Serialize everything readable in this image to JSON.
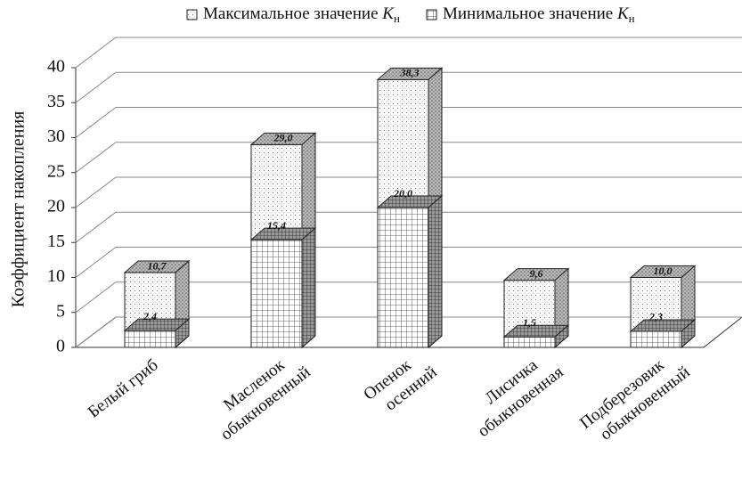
{
  "chart_data": {
    "type": "bar3d-overlap",
    "y_label": "Коэффициент накопления",
    "categories": [
      "Белый гриб",
      "Масленок\nобыкновенный",
      "Опенок\nосенний",
      "Лисичка\nобыкновенная",
      "Подберезовик\nобыкновенный"
    ],
    "series": [
      {
        "name": "Максимальное значение Kн",
        "color": "#e8e8e8",
        "values": [
          10.7,
          29.0,
          38.3,
          9.6,
          10.0
        ],
        "value_labels": [
          "10,7",
          "29,0",
          "38,3",
          "9,6",
          "10,0"
        ]
      },
      {
        "name": "Минимальное значение Kн",
        "color": "#ffffff",
        "values": [
          2.4,
          15.4,
          20.0,
          1.5,
          2.3
        ],
        "value_labels": [
          "2,4",
          "15,4",
          "20,0",
          "1,5",
          "2,3"
        ]
      }
    ],
    "ylim": [
      0,
      40
    ],
    "yticks": [
      0,
      5,
      10,
      15,
      20,
      25,
      30,
      35,
      40
    ],
    "grid": true
  }
}
